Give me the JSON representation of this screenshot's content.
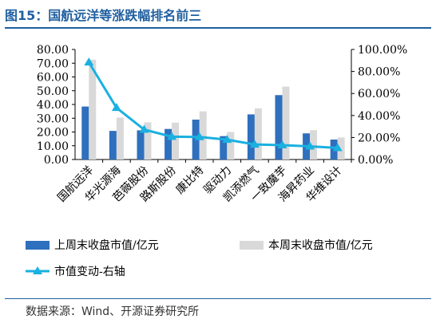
{
  "title": "图15：国航远洋等涨跌幅排名前三",
  "source": "数据来源：Wind、开源证券研究所",
  "colors": {
    "title": "#1f5fa0",
    "bar_this_week": "#2e6fbe",
    "bar_last_week": "#d9d9d9",
    "line": "#1ab0e0"
  },
  "chart_data": {
    "type": "bar",
    "categories": [
      "国航远洋",
      "华光源海",
      "芭薇股份",
      "路斯股份",
      "康比特",
      "驱动力",
      "凯添燃气",
      "一致魔芋",
      "海昇药业",
      "华维设计"
    ],
    "series": [
      {
        "name": "上周末收盘市值/亿元",
        "type": "bar",
        "axis": "left",
        "values": [
          38.5,
          20.8,
          21.2,
          22.2,
          29.0,
          17.0,
          32.8,
          46.8,
          19.0,
          14.5
        ]
      },
      {
        "name": "本周末收盘市值/亿元",
        "type": "bar",
        "axis": "left",
        "values": [
          72.5,
          30.5,
          27.0,
          26.8,
          35.0,
          20.0,
          37.2,
          53.0,
          21.3,
          16.0
        ]
      },
      {
        "name": "市值变动-右轴",
        "type": "line",
        "axis": "right",
        "values": [
          88.3,
          47.0,
          27.2,
          20.7,
          20.5,
          18.0,
          13.7,
          13.0,
          12.0,
          10.5
        ]
      }
    ],
    "y_left": {
      "min": 0,
      "max": 80,
      "ticks": [
        "0.00",
        "10.00",
        "20.00",
        "30.00",
        "40.00",
        "50.00",
        "60.00",
        "70.00",
        "80.00"
      ]
    },
    "y_right": {
      "min": 0,
      "max": 100,
      "ticks": [
        "0.00%",
        "20.00%",
        "40.00%",
        "60.00%",
        "80.00%",
        "100.00%"
      ]
    },
    "legend_position": "bottom"
  }
}
